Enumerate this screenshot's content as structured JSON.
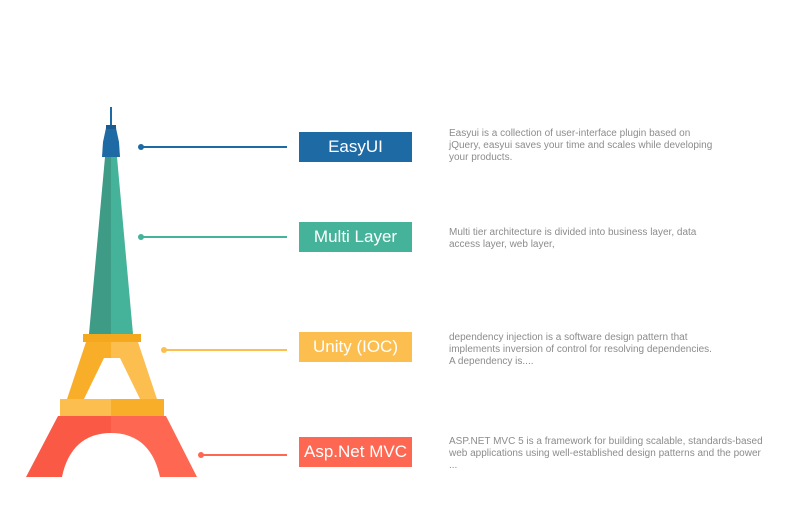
{
  "items": [
    {
      "label": "EasyUI",
      "color": "#1e6aa5",
      "description": "Easyui is a collection of user-interface plugin based on jQuery, easyui saves your time and scales while developing your products."
    },
    {
      "label": "Multi Layer",
      "color": "#45b29a",
      "description": "Multi tier architecture is divided into business layer, data access layer, web layer,"
    },
    {
      "label": "Unity (IOC)",
      "color": "#fcbf4f",
      "description": "dependency injection is a software design pattern that implements inversion of control for resolving dependencies. A dependency is...."
    },
    {
      "label": "Asp.Net MVC",
      "color": "#fe6853",
      "description": "ASP.NET MVC 5 is a framework for building scalable, standards-based web applications using well-established design patterns and the power ..."
    }
  ],
  "tower_icon": "eiffel-tower-icon"
}
